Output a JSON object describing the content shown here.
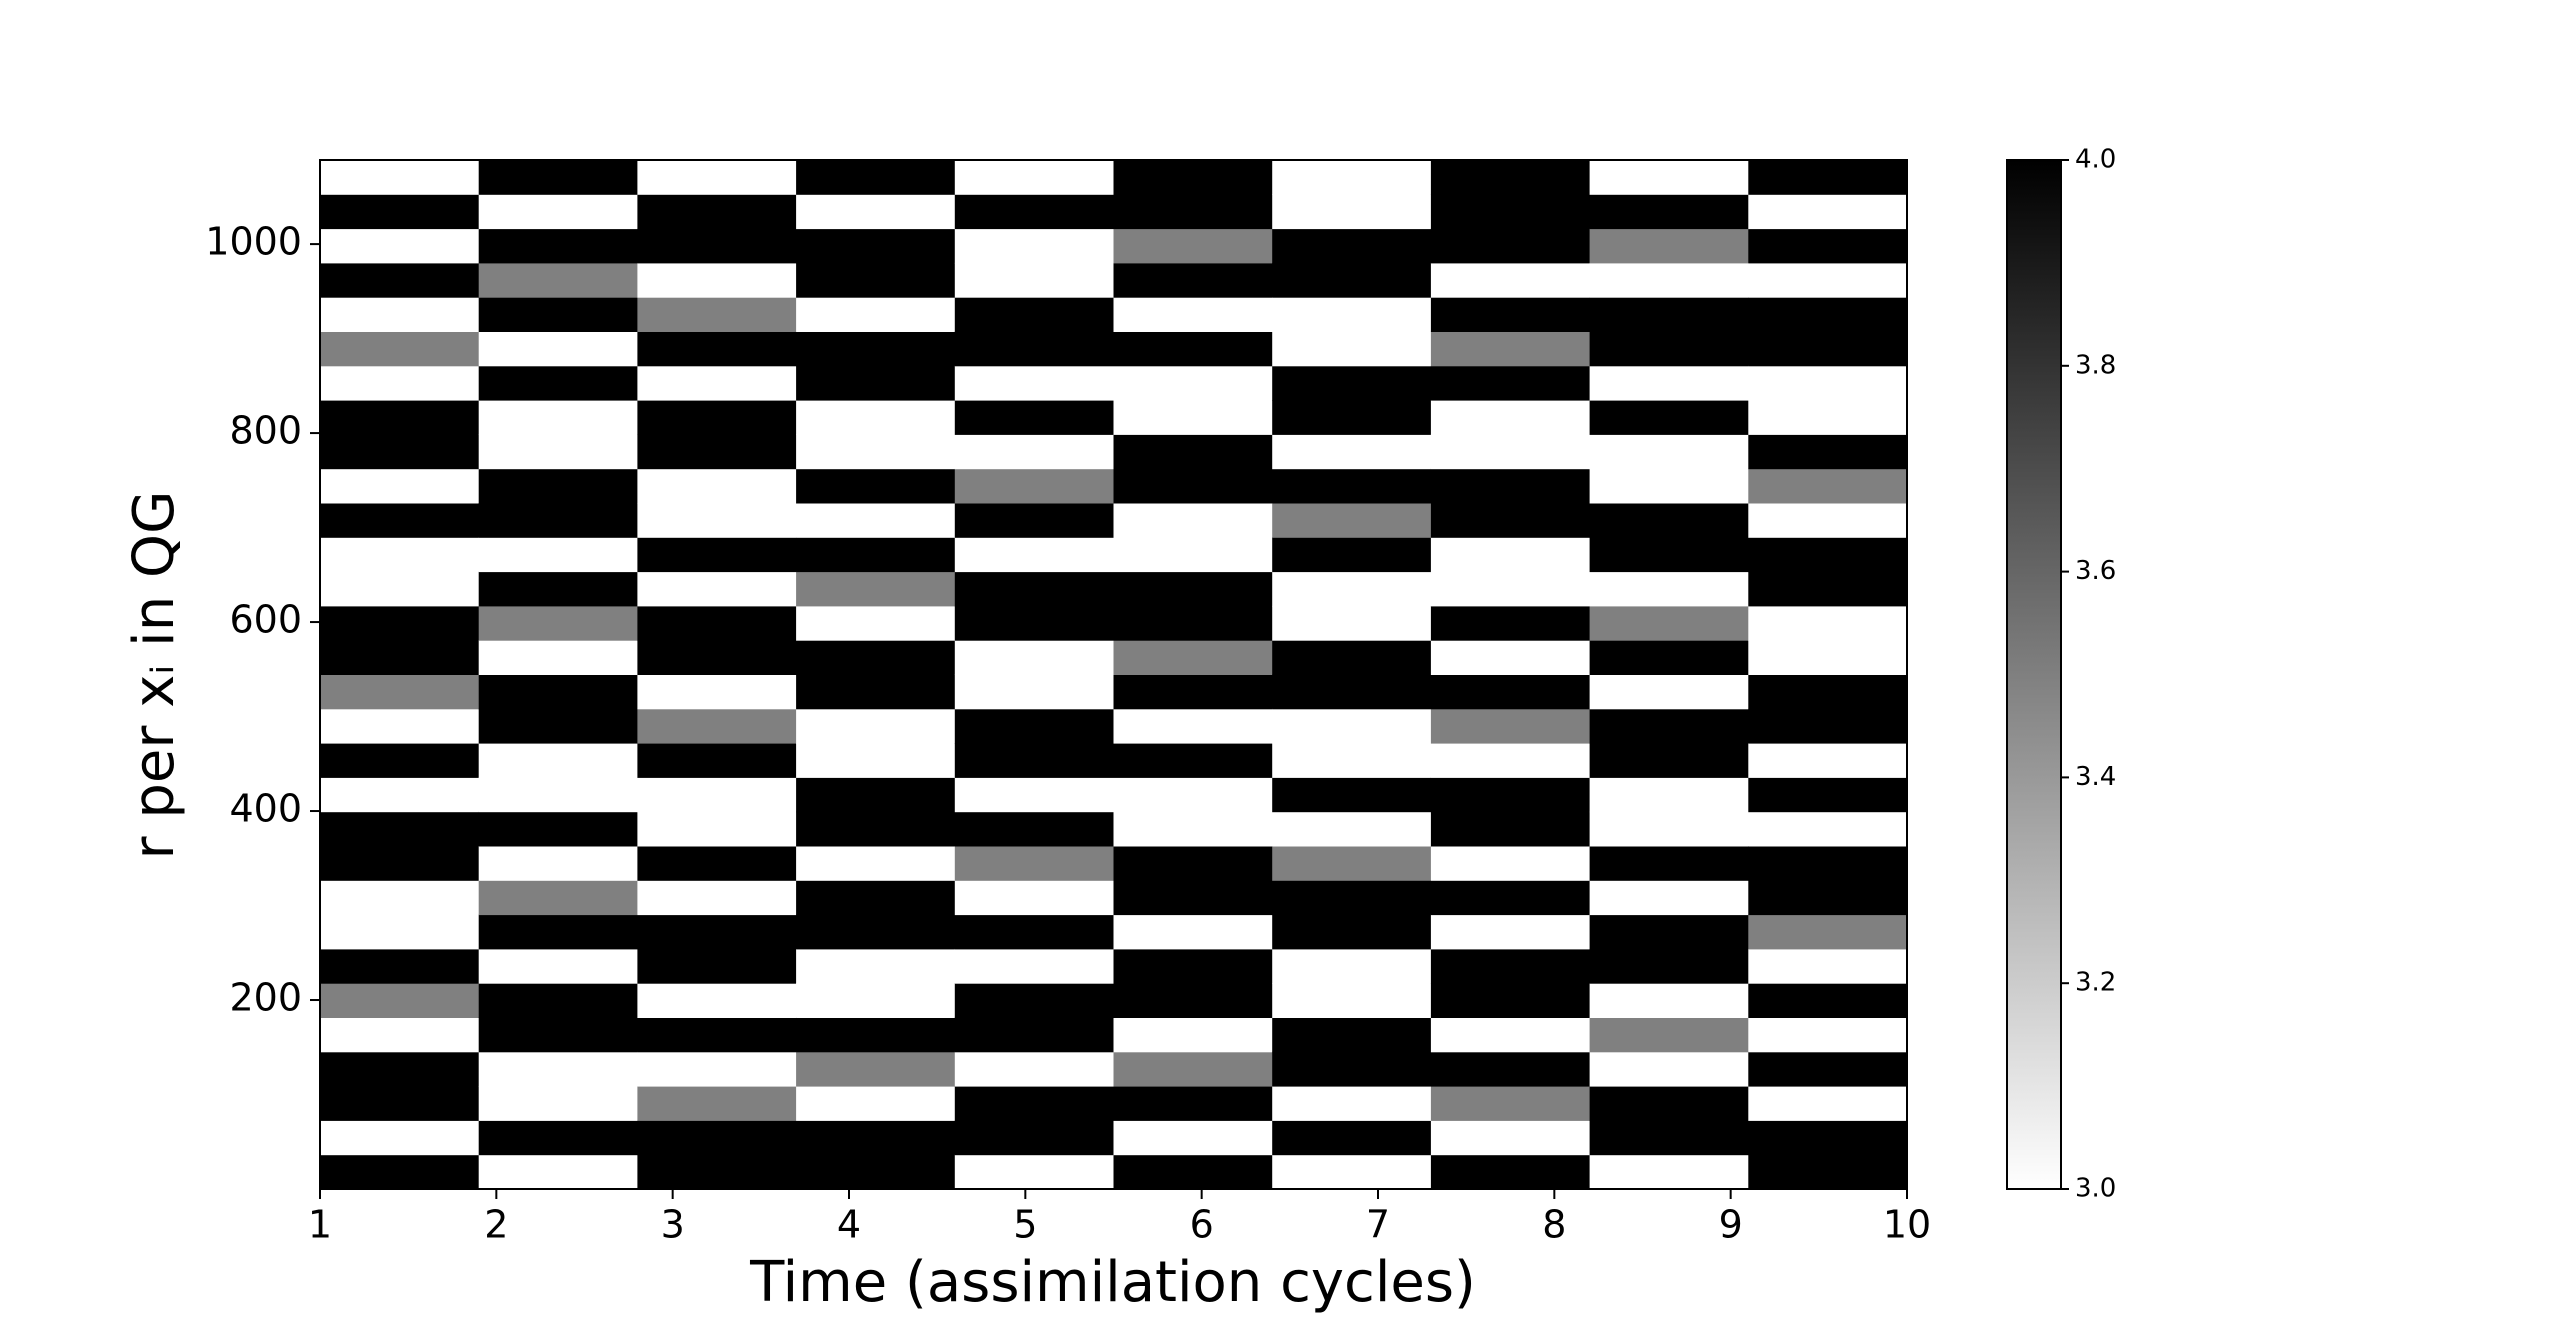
{
  "chart_data": {
    "type": "heatmap",
    "xlabel": "Time (assimilation cycles)",
    "ylabel": "r per xᵢ in QG",
    "xbins": [
      1,
      1.9,
      2.8,
      3.7,
      4.6,
      5.5,
      6.4,
      7.3,
      8.2,
      9.1,
      10
    ],
    "xlim": [
      1,
      10
    ],
    "xticks": [
      1,
      2,
      3,
      4,
      5,
      6,
      7,
      8,
      9,
      10
    ],
    "ylim": [
      0,
      1089
    ],
    "yticks": [
      200,
      400,
      600,
      800,
      1000
    ],
    "z": [
      [
        4,
        3,
        4,
        4,
        3,
        3.5,
        4,
        3,
        3,
        4,
        4,
        3,
        4,
        3,
        3.5,
        4,
        4,
        3,
        3,
        4,
        3,
        4,
        4,
        3,
        3.5,
        3,
        4,
        3,
        4,
        3
      ],
      [
        3,
        4,
        3,
        3,
        4,
        4,
        3,
        4,
        3.5,
        3,
        4,
        3,
        3,
        4,
        4,
        3,
        3.5,
        4,
        3,
        4,
        4,
        3,
        3,
        4,
        3,
        4,
        3.5,
        4,
        3,
        4
      ],
      [
        4,
        4,
        3.5,
        3,
        4,
        3,
        4,
        4,
        3,
        4,
        3,
        3,
        4,
        3.5,
        3,
        4,
        4,
        3,
        4,
        3,
        3,
        4,
        4,
        3,
        4,
        3.5,
        3,
        4,
        4,
        3
      ],
      [
        4,
        4,
        3,
        3.5,
        4,
        3,
        3,
        4,
        4,
        3,
        4,
        4,
        3,
        3,
        4,
        4,
        3,
        3.5,
        4,
        3,
        4,
        3,
        3,
        4,
        4,
        3,
        4,
        4,
        3,
        4
      ],
      [
        3,
        4,
        4,
        3,
        4,
        4,
        3,
        4,
        3,
        3.5,
        4,
        3,
        4,
        4,
        3,
        3,
        4,
        4,
        3,
        4,
        3.5,
        3,
        4,
        3,
        4,
        4,
        3,
        3,
        4,
        3
      ],
      [
        4,
        3,
        4,
        3.5,
        3,
        4,
        4,
        3,
        4,
        4,
        3,
        3,
        4,
        3,
        4,
        3.5,
        4,
        4,
        3,
        3,
        4,
        4,
        3,
        3,
        4,
        3,
        4,
        3.5,
        4,
        4
      ],
      [
        3,
        4,
        3,
        4,
        4,
        3,
        3,
        4,
        4,
        3.5,
        3,
        4,
        3,
        3,
        4,
        4,
        3,
        3,
        4,
        3.5,
        4,
        3,
        4,
        4,
        3,
        3,
        4,
        4,
        3,
        3
      ],
      [
        4,
        3,
        3.5,
        4,
        3,
        4,
        4,
        3,
        4,
        3,
        4,
        4,
        3,
        3.5,
        4,
        3,
        4,
        3,
        3,
        4,
        4,
        3,
        3,
        4,
        3.5,
        4,
        3,
        4,
        4,
        4
      ],
      [
        3,
        4,
        4,
        3,
        3.5,
        3,
        4,
        4,
        3,
        4,
        3,
        3,
        4,
        4,
        3,
        4,
        3.5,
        3,
        4,
        4,
        3,
        3,
        4,
        3,
        4,
        4,
        3,
        3.5,
        4,
        3
      ],
      [
        4,
        4,
        3,
        4,
        3,
        4,
        3,
        3.5,
        4,
        4,
        3,
        4,
        3,
        4,
        4,
        3,
        3,
        4,
        4,
        3,
        3.5,
        4,
        3,
        3,
        4,
        4,
        3,
        4,
        3,
        4
      ]
    ],
    "clim": [
      3,
      4
    ],
    "cmap": [
      "#ffffff",
      "#000000"
    ],
    "cticks": [
      {
        "value": 3,
        "label": "3.0"
      },
      3.2,
      3.4,
      3.6,
      3.8,
      {
        "value": 4,
        "label": "4.0"
      }
    ]
  }
}
